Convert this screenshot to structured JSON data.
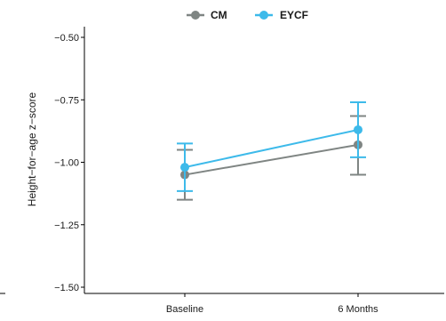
{
  "chart_data": {
    "type": "line",
    "categories": [
      "Baseline",
      "6 Months"
    ],
    "ylabel": "Height−for−age z−score",
    "xlabel": "",
    "ylim": [
      -1.55,
      -0.47
    ],
    "yticks": [
      -0.5,
      -0.75,
      -1.0,
      -1.25,
      -1.5
    ],
    "ytick_labels": [
      "−0.50",
      "−0.75",
      "−1.00",
      "−1.25",
      "−1.50"
    ],
    "grid": false,
    "legend_position": "top",
    "series": [
      {
        "name": "CM",
        "color": "#7f8583",
        "values": [
          -1.05,
          -0.93
        ],
        "error_low": [
          -1.15,
          -1.05
        ],
        "error_high": [
          -0.95,
          -0.815
        ]
      },
      {
        "name": "EYCF",
        "color": "#3dbaea",
        "values": [
          -1.02,
          -0.87
        ],
        "error_low": [
          -1.115,
          -0.98
        ],
        "error_high": [
          -0.925,
          -0.76
        ]
      }
    ]
  }
}
